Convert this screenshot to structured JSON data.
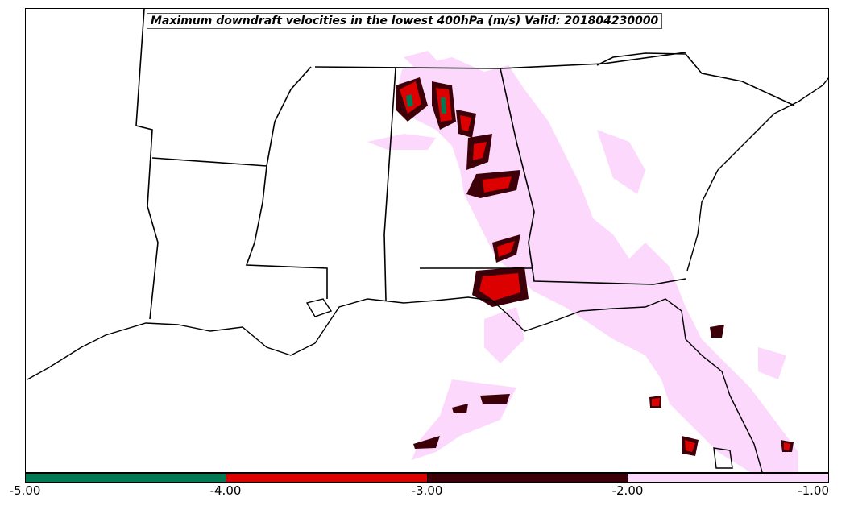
{
  "title": "Maximum downdraft velocities in the lowest 400hPa (m/s) Valid: 201804230000",
  "colorbar": {
    "ticks": [
      "-5.00",
      "-4.00",
      "-3.00",
      "-2.00",
      "-1.00"
    ],
    "bins": [
      {
        "range": [
          -5,
          -4
        ],
        "color": "#007a52"
      },
      {
        "range": [
          -4,
          -3
        ],
        "color": "#dd0000"
      },
      {
        "range": [
          -3,
          -2
        ],
        "color": "#3d0008"
      },
      {
        "range": [
          -2,
          -1
        ],
        "color": "#fcd8fc"
      }
    ]
  },
  "map": {
    "region": "Southeastern United States",
    "colors": {
      "land": "#ffffff",
      "border": "#000000"
    }
  }
}
